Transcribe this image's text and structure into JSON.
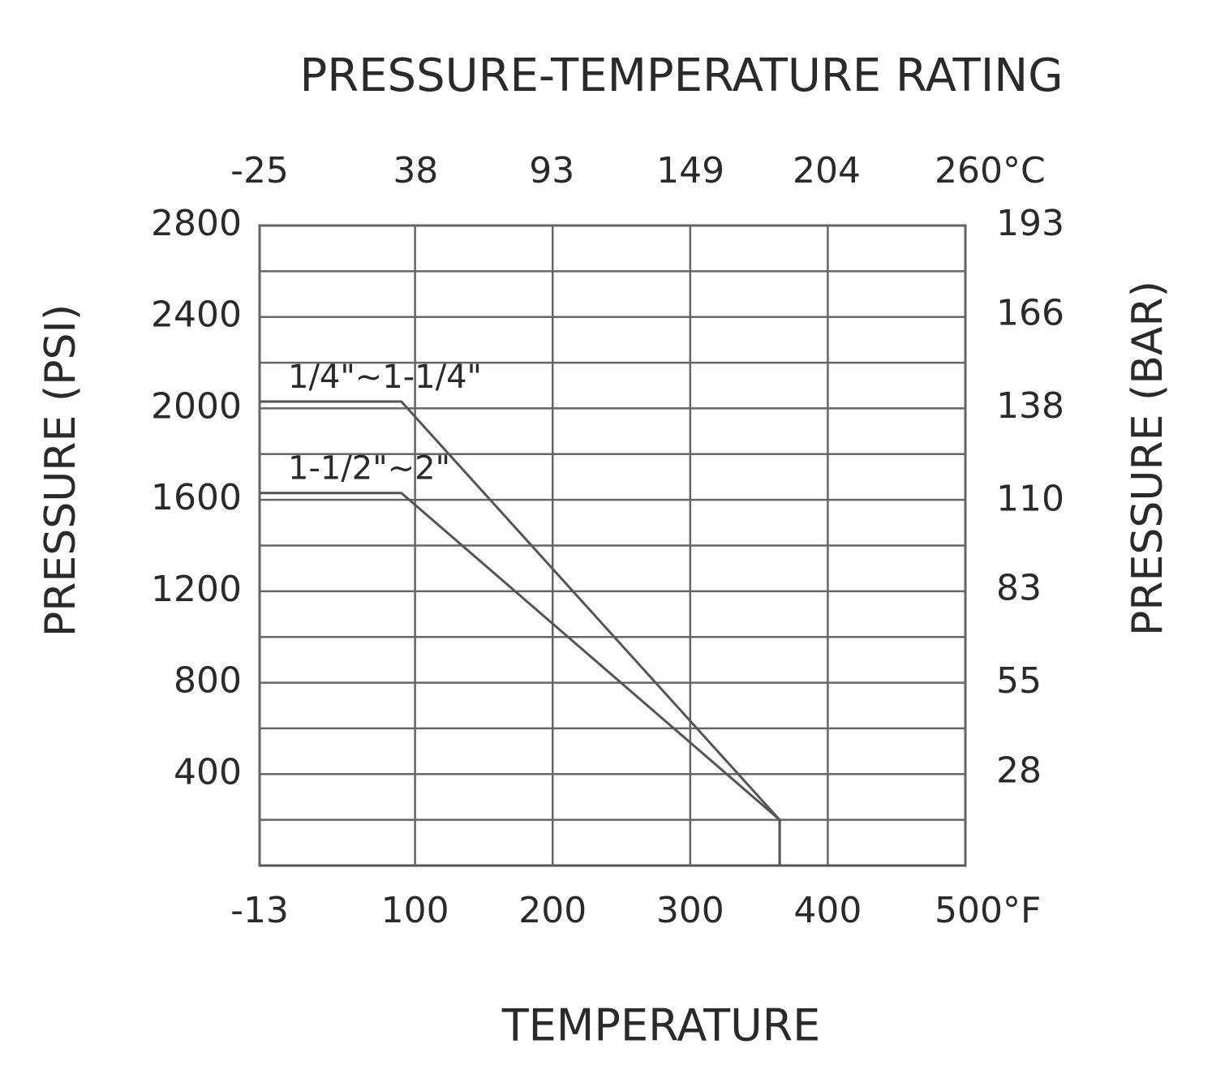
{
  "chart_data": {
    "type": "line",
    "title": "PRESSURE-TEMPERATURE RATING",
    "xlabel": "TEMPERATURE",
    "ylabel": "PRESSURE (PSI)",
    "y2label": "PRESSURE (BAR)",
    "x": [
      -13,
      90,
      365,
      365
    ],
    "series": [
      {
        "name": "1/4\"~1-1/4\"",
        "color": "#555555",
        "values": [
          2030,
          2030,
          200,
          0
        ]
      },
      {
        "name": "1-1/2\"~2\"",
        "color": "#555555",
        "values": [
          1630,
          1630,
          200,
          0
        ]
      }
    ],
    "xlim": [
      -13,
      500
    ],
    "xticks": [
      -13,
      100,
      200,
      300,
      400,
      {
        "value": 500,
        "label": "500°F"
      }
    ],
    "x2lim": [
      -25,
      260
    ],
    "x2ticks": [
      -25,
      38,
      93,
      149,
      204,
      {
        "value": 260,
        "label": "260°C"
      }
    ],
    "ylim": [
      0,
      2800
    ],
    "yticks": [
      400,
      800,
      1200,
      1600,
      2000,
      2400,
      2800
    ],
    "y_minor_ticks": [
      200,
      600,
      1000,
      1400,
      1800,
      2200,
      2600
    ],
    "y2lim": [
      0,
      193
    ],
    "y2ticks": [
      28,
      55,
      83,
      110,
      138,
      166,
      193
    ],
    "grid": true
  }
}
